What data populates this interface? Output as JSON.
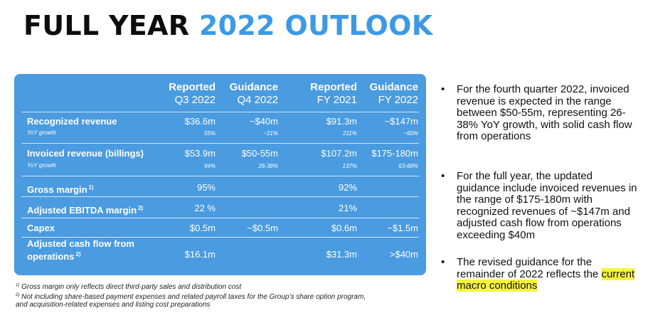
{
  "title": {
    "part1": "FULL YEAR",
    "part2": "2022 OUTLOOK"
  },
  "columns": [
    {
      "top": "Reported",
      "bottom": "Q3 2022"
    },
    {
      "top": "Guidance",
      "bottom": "Q4 2022"
    },
    {
      "top": "Reported",
      "bottom": "FY 2021"
    },
    {
      "top": "Guidance",
      "bottom": "FY 2022"
    }
  ],
  "rows": [
    {
      "label": "Recognized revenue",
      "sup": "",
      "values": [
        "$36.6m",
        "~$40m",
        "$91.3m",
        "~$147m"
      ],
      "sublabel": "YoY growth",
      "subvalues": [
        "55%",
        "~21%",
        "211%",
        "~60%"
      ]
    },
    {
      "label": "Invoiced revenue (billings)",
      "sup": "",
      "values": [
        "$53.9m",
        "$50-55m",
        "$107.2m",
        "$175-180m"
      ],
      "sublabel": "YoY growth",
      "subvalues": [
        "94%",
        "26-38%",
        "137%",
        "63-68%"
      ]
    },
    {
      "label": "Gross margin",
      "sup": "1)",
      "values": [
        "95%",
        "",
        "92%",
        ""
      ]
    },
    {
      "label": "Adjusted EBITDA margin",
      "sup": "2)",
      "values": [
        "22 %",
        "",
        "21%",
        ""
      ]
    },
    {
      "label": "Capex",
      "sup": "",
      "values": [
        "$0.5m",
        "~$0.5m",
        "$0.6m",
        "~$1.5m"
      ]
    },
    {
      "label1": "Adjusted cash flow from",
      "label2": "operations",
      "sup": "2)",
      "values": [
        "$16.1m",
        "",
        "$31.3m",
        ">$40m"
      ]
    }
  ],
  "footnotes": [
    {
      "mark": "1)",
      "text": " Gross margin only reflects direct third-party sales and distribution cost"
    },
    {
      "mark": "2)",
      "text": " Not including share-based payment expenses and related payroll taxes for the Group’s share option program,"
    },
    {
      "mark": "",
      "text": "and acquisition-related expenses and listing cost preparations"
    }
  ],
  "bullets": [
    {
      "symbol": "•",
      "text": "For the fourth quarter 2022, invoiced revenue is expected in the range between $50-55m, representing 26-38% YoY growth, with solid cash flow from operations"
    },
    {
      "symbol": "•",
      "text": "For the full year, the updated guidance include invoiced revenues in the range of $175-180m with recognized revenues of ~$147m and adjusted cash flow from operations exceeding $40m"
    },
    {
      "symbol": "•",
      "text": "The revised guidance for the remainder of 2022 reflects the",
      "highlight": "current macro conditions"
    }
  ]
}
